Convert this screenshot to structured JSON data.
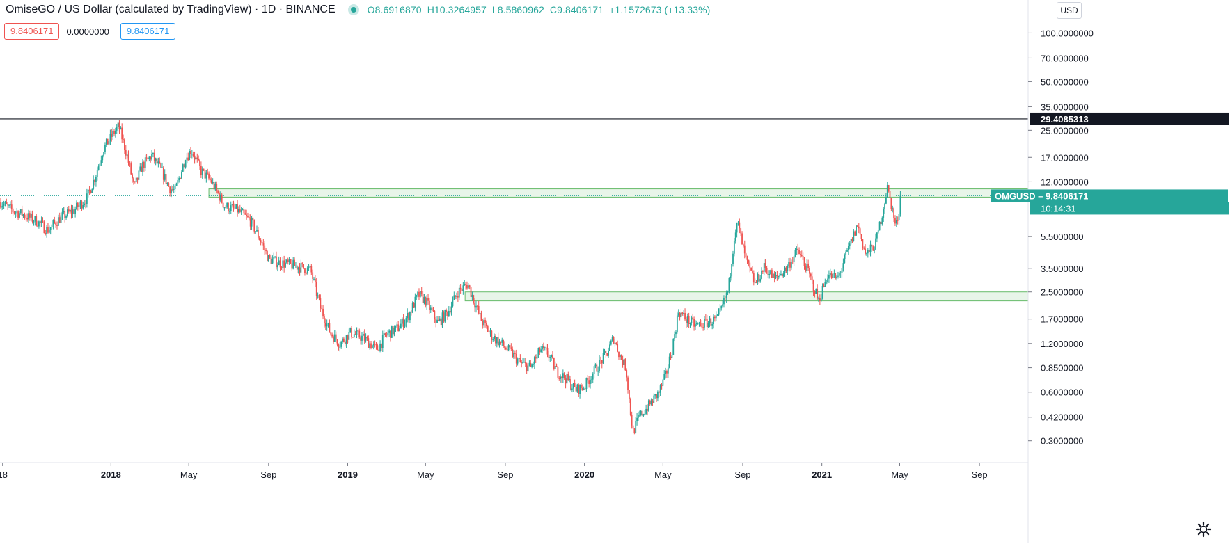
{
  "header": {
    "title": "OmiseGO / US Dollar (calculated by TradingView) · 1D · BINANCE",
    "ohlc": {
      "open": "O8.6916870",
      "high": "H10.3264957",
      "low": "L8.5860962",
      "close": "C9.8406171",
      "change": "+1.1572673 (+13.33%)"
    }
  },
  "indicators": {
    "box1": "9.8406171",
    "plain": "0.0000000",
    "box2": "9.8406171"
  },
  "currency": "USD",
  "chart_data": {
    "type": "candlestick",
    "symbol": "OMGUSD",
    "scale": "log",
    "ylim": [
      0.22,
      160
    ],
    "y_ticks": [
      {
        "value": 100,
        "label": "100.0000000"
      },
      {
        "value": 70,
        "label": "70.0000000"
      },
      {
        "value": 50,
        "label": "50.0000000"
      },
      {
        "value": 35,
        "label": "35.0000000"
      },
      {
        "value": 25,
        "label": "25.0000000"
      },
      {
        "value": 17,
        "label": "17.0000000"
      },
      {
        "value": 12,
        "label": "12.0000000"
      },
      {
        "value": 5.5,
        "label": "5.5000000"
      },
      {
        "value": 3.5,
        "label": "3.5000000"
      },
      {
        "value": 2.5,
        "label": "2.5000000"
      },
      {
        "value": 1.7,
        "label": "1.7000000"
      },
      {
        "value": 1.2,
        "label": "1.2000000"
      },
      {
        "value": 0.85,
        "label": "0.8500000"
      },
      {
        "value": 0.6,
        "label": "0.6000000"
      },
      {
        "value": 0.42,
        "label": "0.4200000"
      },
      {
        "value": 0.3,
        "label": "0.3000000"
      }
    ],
    "x_range": [
      "2017-07-14",
      "2021-11-15"
    ],
    "x_ticks": [
      {
        "date": "2017-07-18",
        "label": "18",
        "bold": false
      },
      {
        "date": "2018-01-01",
        "label": "2018",
        "bold": true
      },
      {
        "date": "2018-05-01",
        "label": "May",
        "bold": false
      },
      {
        "date": "2018-09-01",
        "label": "Sep",
        "bold": false
      },
      {
        "date": "2019-01-01",
        "label": "2019",
        "bold": true
      },
      {
        "date": "2019-05-01",
        "label": "May",
        "bold": false
      },
      {
        "date": "2019-09-01",
        "label": "Sep",
        "bold": false
      },
      {
        "date": "2020-01-01",
        "label": "2020",
        "bold": true
      },
      {
        "date": "2020-05-01",
        "label": "May",
        "bold": false
      },
      {
        "date": "2020-09-01",
        "label": "Sep",
        "bold": false
      },
      {
        "date": "2021-01-01",
        "label": "2021",
        "bold": true
      },
      {
        "date": "2021-05-01",
        "label": "May",
        "bold": false
      },
      {
        "date": "2021-09-01",
        "label": "Sep",
        "bold": false
      }
    ],
    "price_path": [
      [
        "2017-07-14",
        9.0
      ],
      [
        "2017-08-01",
        8.0
      ],
      [
        "2017-08-20",
        7.5
      ],
      [
        "2017-09-10",
        6.8
      ],
      [
        "2017-09-25",
        6.0
      ],
      [
        "2017-10-15",
        7.2
      ],
      [
        "2017-11-05",
        8.0
      ],
      [
        "2017-11-25",
        9.5
      ],
      [
        "2017-12-08",
        13.0
      ],
      [
        "2017-12-20",
        19.0
      ],
      [
        "2018-01-05",
        24.0
      ],
      [
        "2018-01-13",
        26.5
      ],
      [
        "2018-01-25",
        18.0
      ],
      [
        "2018-02-06",
        11.0
      ],
      [
        "2018-02-18",
        15.0
      ],
      [
        "2018-03-05",
        17.5
      ],
      [
        "2018-03-20",
        14.0
      ],
      [
        "2018-04-01",
        11.0
      ],
      [
        "2018-04-10",
        10.5
      ],
      [
        "2018-04-25",
        16.5
      ],
      [
        "2018-05-05",
        19.0
      ],
      [
        "2018-05-20",
        14.0
      ],
      [
        "2018-06-05",
        12.0
      ],
      [
        "2018-06-25",
        8.5
      ],
      [
        "2018-07-15",
        8.0
      ],
      [
        "2018-08-05",
        6.8
      ],
      [
        "2018-08-20",
        5.2
      ],
      [
        "2018-09-01",
        4.0
      ],
      [
        "2018-09-15",
        3.8
      ],
      [
        "2018-10-01",
        3.7
      ],
      [
        "2018-10-15",
        3.6
      ],
      [
        "2018-11-05",
        3.4
      ],
      [
        "2018-11-20",
        2.0
      ],
      [
        "2018-12-05",
        1.4
      ],
      [
        "2018-12-20",
        1.2
      ],
      [
        "2019-01-05",
        1.4
      ],
      [
        "2019-01-25",
        1.3
      ],
      [
        "2019-02-15",
        1.1
      ],
      [
        "2019-03-01",
        1.35
      ],
      [
        "2019-03-20",
        1.5
      ],
      [
        "2019-04-05",
        1.8
      ],
      [
        "2019-04-20",
        2.4
      ],
      [
        "2019-05-01",
        2.2
      ],
      [
        "2019-05-20",
        1.6
      ],
      [
        "2019-06-05",
        1.9
      ],
      [
        "2019-06-20",
        2.5
      ],
      [
        "2019-07-05",
        2.8
      ],
      [
        "2019-07-15",
        2.2
      ],
      [
        "2019-07-25",
        1.7
      ],
      [
        "2019-08-10",
        1.35
      ],
      [
        "2019-08-25",
        1.2
      ],
      [
        "2019-09-10",
        1.05
      ],
      [
        "2019-09-25",
        0.9
      ],
      [
        "2019-10-10",
        0.85
      ],
      [
        "2019-10-25",
        1.1
      ],
      [
        "2019-11-05",
        1.05
      ],
      [
        "2019-11-20",
        0.8
      ],
      [
        "2019-12-05",
        0.72
      ],
      [
        "2019-12-18",
        0.62
      ],
      [
        "2020-01-01",
        0.65
      ],
      [
        "2020-01-15",
        0.8
      ],
      [
        "2020-02-05",
        1.05
      ],
      [
        "2020-02-15",
        1.3
      ],
      [
        "2020-02-25",
        1.0
      ],
      [
        "2020-03-05",
        0.85
      ],
      [
        "2020-03-12",
        0.45
      ],
      [
        "2020-03-16",
        0.34
      ],
      [
        "2020-03-25",
        0.42
      ],
      [
        "2020-04-10",
        0.5
      ],
      [
        "2020-04-25",
        0.6
      ],
      [
        "2020-05-05",
        0.75
      ],
      [
        "2020-05-15",
        1.1
      ],
      [
        "2020-05-25",
        1.9
      ],
      [
        "2020-06-05",
        1.7
      ],
      [
        "2020-06-20",
        1.55
      ],
      [
        "2020-07-05",
        1.6
      ],
      [
        "2020-07-25",
        1.7
      ],
      [
        "2020-08-10",
        2.6
      ],
      [
        "2020-08-20",
        6.0
      ],
      [
        "2020-08-25",
        6.5
      ],
      [
        "2020-09-05",
        4.0
      ],
      [
        "2020-09-20",
        2.8
      ],
      [
        "2020-10-05",
        3.6
      ],
      [
        "2020-10-20",
        3.0
      ],
      [
        "2020-11-05",
        3.4
      ],
      [
        "2020-11-25",
        4.5
      ],
      [
        "2020-12-10",
        3.4
      ],
      [
        "2020-12-27",
        2.2
      ],
      [
        "2021-01-10",
        3.2
      ],
      [
        "2021-01-25",
        3.0
      ],
      [
        "2021-02-10",
        4.5
      ],
      [
        "2021-02-25",
        6.5
      ],
      [
        "2021-03-10",
        4.2
      ],
      [
        "2021-03-25",
        5.0
      ],
      [
        "2021-04-05",
        8.0
      ],
      [
        "2021-04-12",
        11.0
      ],
      [
        "2021-04-20",
        8.0
      ],
      [
        "2021-04-25",
        6.2
      ],
      [
        "2021-05-01",
        8.5
      ],
      [
        "2021-05-03",
        9.84
      ]
    ],
    "last_date": "2021-05-03",
    "last_price": 9.8406171,
    "last_label": "OMGUSD",
    "last_value_label": "9.8406171",
    "countdown": "10:14:31",
    "resistance_line": {
      "value": 29.4085313,
      "label": "29.4085313"
    },
    "zones": [
      {
        "from_date": "2018-06-01",
        "to_date": "2021-11-15",
        "low": 9.65,
        "high": 10.85
      },
      {
        "from_date": "2019-07-01",
        "to_date": "2021-11-15",
        "low": 2.2,
        "high": 2.5
      }
    ],
    "colors": {
      "up": "#26a69a",
      "down": "#ef5350",
      "zone_fill": "#e8f5e9",
      "zone_line": "#66bb6a",
      "badge": "#26a69a"
    }
  }
}
